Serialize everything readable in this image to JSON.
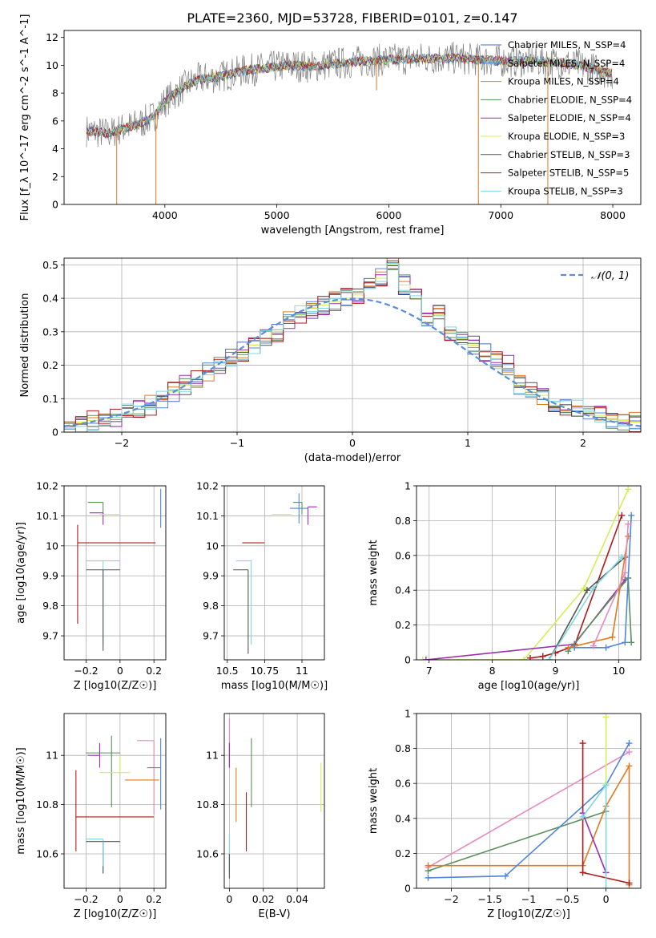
{
  "figure_title": "PLATE=2360, MJD=53728, FIBERID=0101, z=0.147",
  "colors": {
    "chabrier_miles": "#4a6fc4",
    "salpeter_miles": "#4f86d9",
    "kroupa_miles": "#e07b1f",
    "chabrier_elodie": "#5a8f5a",
    "salpeter_elodie": "#9b2fae",
    "kroupa_elodie": "#d4ee55",
    "chabrier_stelib": "#555555",
    "salpeter_stelib": "#b01a1a",
    "kroupa_stelib": "#7fd8e0",
    "data": "#808080",
    "gauss": "#5b8ed6"
  },
  "chart_data": [
    {
      "type": "line",
      "title": "PLATE=2360, MJD=53728, FIBERID=0101, z=0.147",
      "xlabel": "wavelength [Angstrom, rest frame]",
      "ylabel": "Flux [f_λ 10^-17 erg cm^-2 s^-1 A^-1]",
      "xlim": [
        3100,
        8250
      ],
      "ylim": [
        0,
        12.5
      ],
      "xticks": [
        4000,
        5000,
        6000,
        7000,
        8000
      ],
      "yticks": [
        0,
        2,
        4,
        6,
        8,
        10,
        12
      ],
      "grid": false,
      "legend_position": "right",
      "legend": [
        "Chabrier MILES, N_SSP=4",
        "Salpeter MILES, N_SSP=4",
        "Kroupa MILES, N_SSP=4",
        "Chabrier ELODIE, N_SSP=4",
        "Salpeter ELODIE, N_SSP=4",
        "Kroupa ELODIE, N_SSP=3",
        "Chabrier STELIB, N_SSP=3",
        "Salpeter STELIB, N_SSP=5",
        "Kroupa STELIB, N_SSP=3"
      ],
      "model_envelope": {
        "x": [
          3300,
          3400,
          3500,
          3600,
          3700,
          3800,
          3900,
          4000,
          4100,
          4200,
          4300,
          4500,
          4700,
          4900,
          5100,
          5300,
          5500,
          5800,
          6000,
          6300,
          6600,
          6800,
          7000,
          7300,
          7500,
          7700,
          7900,
          8000
        ],
        "y": [
          5.3,
          5.2,
          5.1,
          5.4,
          5.6,
          5.9,
          6.3,
          7.4,
          8.0,
          8.6,
          9.0,
          9.2,
          9.6,
          9.8,
          10.0,
          9.9,
          10.1,
          10.3,
          10.4,
          10.5,
          10.5,
          10.4,
          10.3,
          10.3,
          10.2,
          10.0,
          9.6,
          9.4
        ]
      },
      "absorption_features": [
        {
          "x": 3570,
          "y_min": 0
        },
        {
          "x": 3920,
          "y_min": 0
        },
        {
          "x": 6800,
          "y_min": 0
        },
        {
          "x": 7420,
          "y_min": 0
        },
        {
          "x": 5890,
          "y_min": 8.2
        },
        {
          "x": 7900,
          "y_min": 9.2
        }
      ]
    },
    {
      "type": "line",
      "xlabel": "(data-model)/error",
      "ylabel": "Normed distribution",
      "xlim": [
        -2.5,
        2.5
      ],
      "ylim": [
        0,
        0.52
      ],
      "xticks": [
        -2,
        -1,
        0,
        1,
        2
      ],
      "yticks": [
        0.0,
        0.1,
        0.2,
        0.3,
        0.4,
        0.5
      ],
      "grid": true,
      "legend_position": "top-right",
      "legend": [
        "N(0,1)"
      ],
      "gaussian": {
        "mean": 0,
        "sigma": 1
      },
      "histogram_bins": {
        "start": -2.5,
        "width": 0.1
      },
      "histograms": {
        "kroupa_elodie": [
          0.02,
          0.03,
          0.035,
          0.04,
          0.045,
          0.055,
          0.07,
          0.08,
          0.1,
          0.12,
          0.14,
          0.16,
          0.18,
          0.2,
          0.22,
          0.24,
          0.26,
          0.28,
          0.3,
          0.33,
          0.35,
          0.37,
          0.38,
          0.39,
          0.4,
          0.41,
          0.43,
          0.46,
          0.5,
          0.44,
          0.4,
          0.33,
          0.35,
          0.3,
          0.28,
          0.26,
          0.24,
          0.22,
          0.2,
          0.14,
          0.12,
          0.11,
          0.09,
          0.08,
          0.07,
          0.06,
          0.05,
          0.04,
          0.035,
          0.03
        ]
      }
    },
    {
      "type": "scatter",
      "xlabel": "Z [log10(Z/Z☉)]",
      "ylabel": "age [log10(age/yr)]",
      "xlim": [
        -0.33,
        0.27
      ],
      "ylim": [
        9.62,
        10.2
      ],
      "xticks": [
        -0.2,
        0.0,
        0.2
      ],
      "yticks": [
        9.7,
        9.8,
        9.9,
        10.0,
        10.1,
        10.2
      ],
      "grid": true,
      "crosses": [
        {
          "series": "chabrier_elodie",
          "x": -0.1,
          "y": 10.145,
          "xerr": [
            0.09,
            0.0
          ],
          "yerr": [
            0.04,
            0.0
          ]
        },
        {
          "series": "salpeter_elodie",
          "x": -0.1,
          "y": 10.11,
          "xerr": [
            0.08,
            0.0
          ],
          "yerr": [
            0.04,
            0.0
          ]
        },
        {
          "series": "kroupa_elodie",
          "x": 0.0,
          "y": 10.105,
          "xerr": [
            0.12,
            0.0
          ],
          "yerr": [
            0.0,
            0.0
          ]
        },
        {
          "series": "salpeter_miles",
          "x": 0.24,
          "y": 10.13,
          "xerr": [
            0.0,
            0.0
          ],
          "yerr": [
            0.07,
            0.06
          ]
        },
        {
          "series": "kroupa_miles",
          "x": 0.2,
          "y": 10.1,
          "xerr": [
            0.0,
            0.0
          ],
          "yerr": [
            0.0,
            0.0
          ]
        },
        {
          "series": "salpeter_stelib",
          "x": -0.25,
          "y": 10.01,
          "xerr": [
            0.0,
            0.46
          ],
          "yerr": [
            0.27,
            0.06
          ]
        },
        {
          "series": "kroupa_stelib",
          "x": -0.1,
          "y": 9.95,
          "xerr": [
            0.1,
            0.1
          ],
          "yerr": [
            0.28,
            0.0
          ]
        },
        {
          "series": "chabrier_stelib",
          "x": -0.1,
          "y": 9.92,
          "xerr": [
            0.1,
            0.1
          ],
          "yerr": [
            0.27,
            0.0
          ]
        }
      ]
    },
    {
      "type": "scatter",
      "xlabel": "mass [log10(M/M☉)]",
      "xlim": [
        10.48,
        11.15
      ],
      "ylim": [
        9.62,
        10.2
      ],
      "xticks": [
        10.5,
        10.75,
        11.0
      ],
      "yticks": [
        9.7,
        9.8,
        9.9,
        10.0,
        10.1,
        10.2
      ],
      "grid": true,
      "crosses": [
        {
          "series": "chabrier_elodie",
          "x": 11.0,
          "y": 10.145,
          "xerr": [
            0.06,
            0.0
          ],
          "yerr": [
            0.04,
            0.0
          ]
        },
        {
          "series": "salpeter_elodie",
          "x": 11.04,
          "y": 10.13,
          "xerr": [
            0.0,
            0.06
          ],
          "yerr": [
            0.06,
            0.0
          ]
        },
        {
          "series": "kroupa_elodie",
          "x": 10.93,
          "y": 10.105,
          "xerr": [
            0.13,
            0.0
          ],
          "yerr": [
            0.0,
            0.0
          ]
        },
        {
          "series": "salpeter_miles",
          "x": 10.98,
          "y": 10.125,
          "xerr": [
            0.06,
            0.06
          ],
          "yerr": [
            0.05,
            0.05
          ]
        },
        {
          "series": "salpeter_stelib",
          "x": 10.75,
          "y": 10.01,
          "xerr": [
            0.15,
            0.0
          ],
          "yerr": [
            0.0,
            0.0
          ]
        },
        {
          "series": "kroupa_stelib",
          "x": 10.66,
          "y": 9.95,
          "xerr": [
            0.1,
            0.0
          ],
          "yerr": [
            0.28,
            0.0
          ]
        },
        {
          "series": "chabrier_stelib",
          "x": 10.64,
          "y": 9.92,
          "xerr": [
            0.1,
            0.0
          ],
          "yerr": [
            0.28,
            0.0
          ]
        }
      ]
    },
    {
      "type": "line",
      "xlabel": "age [log10(age/yr)]",
      "ylabel": "mass weight",
      "xlim": [
        6.8,
        10.35
      ],
      "ylim": [
        0,
        1.0
      ],
      "xticks": [
        7,
        8,
        9,
        10
      ],
      "yticks": [
        0.0,
        0.2,
        0.4,
        0.6,
        0.8,
        1.0
      ],
      "grid": true,
      "series": [
        {
          "name": "kroupa_elodie",
          "x": [
            6.9,
            8.5,
            9.45,
            10.15
          ],
          "y": [
            0.0,
            0.0,
            0.41,
            0.98
          ]
        },
        {
          "name": "salpeter_elodie",
          "x": [
            6.95,
            9.3,
            10.1
          ],
          "y": [
            0.0,
            0.09,
            0.46
          ]
        },
        {
          "name": "salpeter_stelib",
          "x": [
            8.6,
            8.8,
            9.0,
            9.3,
            10.05
          ],
          "y": [
            0.01,
            0.02,
            0.04,
            0.08,
            0.83
          ]
        },
        {
          "name": "chabrier_elodie",
          "x": [
            9.2,
            10.15,
            10.2
          ],
          "y": [
            0.05,
            0.47,
            0.1
          ]
        },
        {
          "name": "chabrier_stelib",
          "x": [
            8.9,
            9.5,
            10.1
          ],
          "y": [
            0.0,
            0.4,
            0.59
          ]
        },
        {
          "name": "kroupa_stelib",
          "x": [
            8.9,
            9.6,
            10.05
          ],
          "y": [
            0.0,
            0.41,
            0.59
          ]
        },
        {
          "name": "kroupa_miles",
          "x": [
            9.2,
            9.9,
            10.15
          ],
          "y": [
            0.07,
            0.13,
            0.71
          ]
        },
        {
          "name": "salpeter_miles",
          "x": [
            9.3,
            9.8,
            10.1,
            10.2
          ],
          "y": [
            0.07,
            0.07,
            0.1,
            0.83
          ]
        },
        {
          "name": "pink",
          "x": [
            9.6,
            10.1,
            10.15
          ],
          "y": [
            0.08,
            0.5,
            0.78
          ]
        }
      ]
    },
    {
      "type": "scatter",
      "xlabel": "Z [log10(Z/Z☉)]",
      "ylabel": "mass [log10(M/M☉)]",
      "xlim": [
        -0.33,
        0.27
      ],
      "ylim": [
        10.46,
        11.17
      ],
      "xticks": [
        -0.2,
        0.0,
        0.2
      ],
      "yticks": [
        10.6,
        10.8,
        11.0
      ],
      "grid": true,
      "crosses": [
        {
          "series": "chabrier_elodie",
          "x": -0.1,
          "y": 11.01,
          "xerr": [
            0.1,
            0.1
          ],
          "yerr": [
            0.0,
            0.0
          ]
        },
        {
          "series": "chabrier_elodie",
          "x": -0.05,
          "y": 11.01,
          "xerr": [
            0.0,
            0.0
          ],
          "yerr": [
            0.22,
            0.07
          ]
        },
        {
          "series": "salpeter_elodie",
          "x": -0.12,
          "y": 11.0,
          "xerr": [
            0.07,
            0.0
          ],
          "yerr": [
            0.05,
            0.05
          ]
        },
        {
          "series": "kroupa_elodie",
          "x": -0.02,
          "y": 10.93,
          "xerr": [
            0.1,
            0.08
          ],
          "yerr": [
            0.0,
            0.0
          ]
        },
        {
          "series": "kroupa_elodie",
          "x": 0.0,
          "y": 10.93,
          "xerr": [
            0.0,
            0.0
          ],
          "yerr": [
            0.0,
            0.07
          ]
        },
        {
          "series": "pink",
          "x": 0.2,
          "y": 11.06,
          "xerr": [
            0.1,
            0.0
          ],
          "yerr": [
            0.3,
            0.0
          ]
        },
        {
          "series": "salpeter_miles",
          "x": 0.24,
          "y": 10.95,
          "xerr": [
            0.08,
            0.0
          ],
          "yerr": [
            0.17,
            0.12
          ]
        },
        {
          "series": "kroupa_miles",
          "x": 0.23,
          "y": 10.9,
          "xerr": [
            0.2,
            0.0
          ],
          "yerr": [
            0.0,
            0.0
          ]
        },
        {
          "series": "salpeter_stelib",
          "x": -0.26,
          "y": 10.75,
          "xerr": [
            0.0,
            0.46
          ],
          "yerr": [
            0.14,
            0.19
          ]
        },
        {
          "series": "kroupa_stelib",
          "x": -0.1,
          "y": 10.66,
          "xerr": [
            0.1,
            0.0
          ],
          "yerr": [
            0.14,
            0.0
          ]
        },
        {
          "series": "chabrier_stelib",
          "x": -0.1,
          "y": 10.65,
          "xerr": [
            0.1,
            0.1
          ],
          "yerr": [
            0.13,
            0.0
          ]
        },
        {
          "series": "kroupa_stelib",
          "x": -0.1,
          "y": 10.6,
          "xerr": [
            0.0,
            0.0
          ],
          "yerr": [
            0.05,
            0.05
          ]
        }
      ]
    },
    {
      "type": "scatter",
      "xlabel": "E(B-V)",
      "xlim": [
        -0.003,
        0.056
      ],
      "ylim": [
        10.46,
        11.17
      ],
      "xticks": [
        0.0,
        0.02,
        0.04
      ],
      "yticks": [
        10.6,
        10.8,
        11.0
      ],
      "grid": true,
      "crosses": [
        {
          "series": "pink",
          "x": 0.0,
          "y": 11.05,
          "yerr": [
            0.1,
            0.1
          ]
        },
        {
          "series": "salpeter_elodie",
          "x": 0.0,
          "y": 11.0,
          "yerr": [
            0.05,
            0.05
          ]
        },
        {
          "series": "kroupa_miles",
          "x": 0.004,
          "y": 10.83,
          "yerr": [
            0.1,
            0.12
          ]
        },
        {
          "series": "chabrier_elodie",
          "x": 0.013,
          "y": 10.93,
          "yerr": [
            0.14,
            0.14
          ]
        },
        {
          "series": "salpeter_stelib",
          "x": 0.01,
          "y": 10.73,
          "yerr": [
            0.12,
            0.12
          ]
        },
        {
          "series": "kroupa_elodie",
          "x": 0.054,
          "y": 10.87,
          "yerr": [
            0.1,
            0.1
          ]
        },
        {
          "series": "kroupa_stelib",
          "x": 0.0,
          "y": 10.6,
          "yerr": [
            0.08,
            0.08
          ]
        },
        {
          "series": "chabrier_stelib",
          "x": 0.0,
          "y": 10.55,
          "yerr": [
            0.05,
            0.05
          ]
        }
      ]
    },
    {
      "type": "line",
      "xlabel": "Z [log10(Z/Z☉)]",
      "ylabel": "mass weight",
      "xlim": [
        -2.45,
        0.45
      ],
      "ylim": [
        0,
        1.0
      ],
      "xticks": [
        -2.0,
        -1.5,
        -1.0,
        -0.5,
        0.0
      ],
      "yticks": [
        0.0,
        0.2,
        0.4,
        0.6,
        0.8,
        1.0
      ],
      "grid": true,
      "series": [
        {
          "name": "pink",
          "x": [
            -2.3,
            0.3
          ],
          "y": [
            0.12,
            0.78
          ]
        },
        {
          "name": "chabrier_elodie",
          "x": [
            -2.3,
            0.0
          ],
          "y": [
            0.1,
            0.44
          ]
        },
        {
          "name": "kroupa_miles",
          "x": [
            -2.3,
            -0.3,
            0.0,
            0.3,
            0.3
          ],
          "y": [
            0.13,
            0.13,
            0.47,
            0.7,
            0.02
          ]
        },
        {
          "name": "salpeter_miles",
          "x": [
            -2.3,
            -1.3,
            0.0,
            0.3
          ],
          "y": [
            0.06,
            0.07,
            0.59,
            0.83
          ]
        },
        {
          "name": "salpeter_stelib",
          "x": [
            -0.3,
            -0.3,
            0.3
          ],
          "y": [
            0.83,
            0.09,
            0.03
          ]
        },
        {
          "name": "salpeter_elodie",
          "x": [
            -0.3,
            0.0
          ],
          "y": [
            0.43,
            0.09
          ]
        },
        {
          "name": "kroupa_elodie",
          "x": [
            0.0,
            0.0
          ],
          "y": [
            0.6,
            0.98
          ]
        },
        {
          "name": "kroupa_stelib",
          "x": [
            -0.3,
            0.0,
            0.0
          ],
          "y": [
            0.41,
            0.59,
            0.0
          ]
        }
      ]
    }
  ]
}
